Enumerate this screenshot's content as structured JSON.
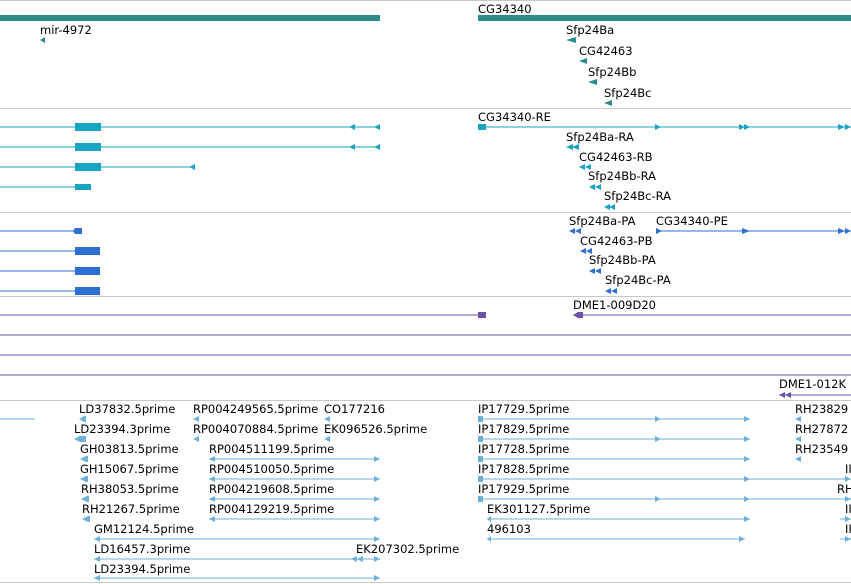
{
  "colors": {
    "gene": "#2e8b8b",
    "transcript": "#1aa3c2",
    "protein": "#2f6fd1",
    "clone": "#6e52a8",
    "est": "#6fb0d8",
    "separator": "#c8c8c8"
  },
  "genes": {
    "labels": [
      "mir-4972",
      "CG34340",
      "Sfp24Ba",
      "CG42463",
      "Sfp24Bb",
      "Sfp24Bc"
    ]
  },
  "transcripts": {
    "labels": [
      "CG34340-RE",
      "Sfp24Ba-RA",
      "CG42463-RB",
      "Sfp24Bb-RA",
      "Sfp24Bc-RA"
    ]
  },
  "proteins": {
    "labels": [
      "Sfp24Ba-PA",
      "CG34340-PE",
      "CG42463-PB",
      "Sfp24Bb-PA",
      "Sfp24Bc-PA"
    ]
  },
  "clones": {
    "labels": [
      "DME1-009D20",
      "DME1-012K"
    ]
  },
  "ests": {
    "labels": [
      "LD37832.5prime",
      "RP004249565.5prime",
      "CO177216",
      "IP17729.5prime",
      "RH23829",
      "LD23394.3prime",
      "RP004070884.5prime",
      "EK096526.5prime",
      "IP17829.5prime",
      "RH27872",
      "GH03813.5prime",
      "RP004511199.5prime",
      "IP17728.5prime",
      "RH23549",
      "GH15067.5prime",
      "RP004510050.5prime",
      "IP17828.5prime",
      "II",
      "RH38053.5prime",
      "RP004219608.5prime",
      "IP17929.5prime",
      "RH",
      "RH21267.5prime",
      "RP004129219.5prime",
      "EK301127.5prime",
      "II",
      "GM12124.5prime",
      "496103",
      "II",
      "LD16457.3prime",
      "EK207302.5prime",
      "LD23394.5prime"
    ]
  }
}
